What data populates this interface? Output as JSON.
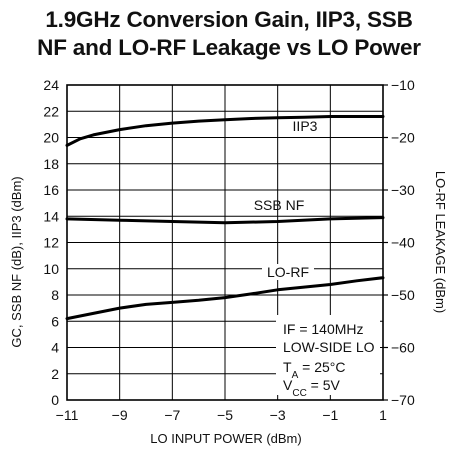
{
  "chart_data": {
    "type": "line",
    "title_line1": "1.9GHz Conversion Gain, IIP3, SSB",
    "title_line2": "NF and LO-RF Leakage vs LO Power",
    "xlabel": "LO INPUT POWER (dBm)",
    "ylabel": "GC, SSB NF (dB), IIP3 (dBm)",
    "y2label": "LO-RF LEAKAGE (dBm)",
    "xlim": [
      -11,
      1
    ],
    "ylim": [
      0,
      24
    ],
    "y2lim": [
      -70,
      -10
    ],
    "x_ticks": [
      "−11",
      "−9",
      "−7",
      "−5",
      "−3",
      "−1",
      "1"
    ],
    "y_ticks": [
      "0",
      "2",
      "4",
      "6",
      "8",
      "10",
      "12",
      "14",
      "16",
      "18",
      "20",
      "22",
      "24"
    ],
    "y2_ticks": [
      "−70",
      "−60",
      "−50",
      "−40",
      "−30",
      "−20",
      "−10"
    ],
    "grid": true,
    "series": [
      {
        "name": "IIP3",
        "axis": "left",
        "x": [
          -11,
          -10.5,
          -10,
          -9,
          -8,
          -7,
          -6,
          -5,
          -4,
          -3,
          -2,
          -1,
          0,
          1
        ],
        "values": [
          19.4,
          19.9,
          20.2,
          20.6,
          20.9,
          21.1,
          21.25,
          21.35,
          21.45,
          21.5,
          21.55,
          21.6,
          21.6,
          21.6
        ]
      },
      {
        "name": "SSB NF",
        "axis": "left",
        "x": [
          -11,
          -9,
          -7,
          -5,
          -3,
          -1,
          1
        ],
        "values": [
          13.8,
          13.7,
          13.6,
          13.5,
          13.6,
          13.8,
          13.9
        ]
      },
      {
        "name": "LO-RF",
        "axis": "right",
        "x": [
          -11,
          -10,
          -9,
          -8,
          -7,
          -6,
          -5,
          -4,
          -3,
          -2,
          -1,
          0,
          1
        ],
        "values": [
          -54.5,
          -53.5,
          -52.5,
          -51.8,
          -51.4,
          -51.0,
          -50.5,
          -49.8,
          -49.0,
          -48.5,
          -48.0,
          -47.3,
          -46.7
        ]
      }
    ],
    "conditions": {
      "line1": "IF = 140MHz",
      "line2": "LOW-SIDE LO",
      "ta_prefix": "T",
      "ta_sub": "A",
      "ta_value": " = 25°C",
      "vcc_prefix": "V",
      "vcc_sub": "CC",
      "vcc_value": " = 5V"
    }
  }
}
